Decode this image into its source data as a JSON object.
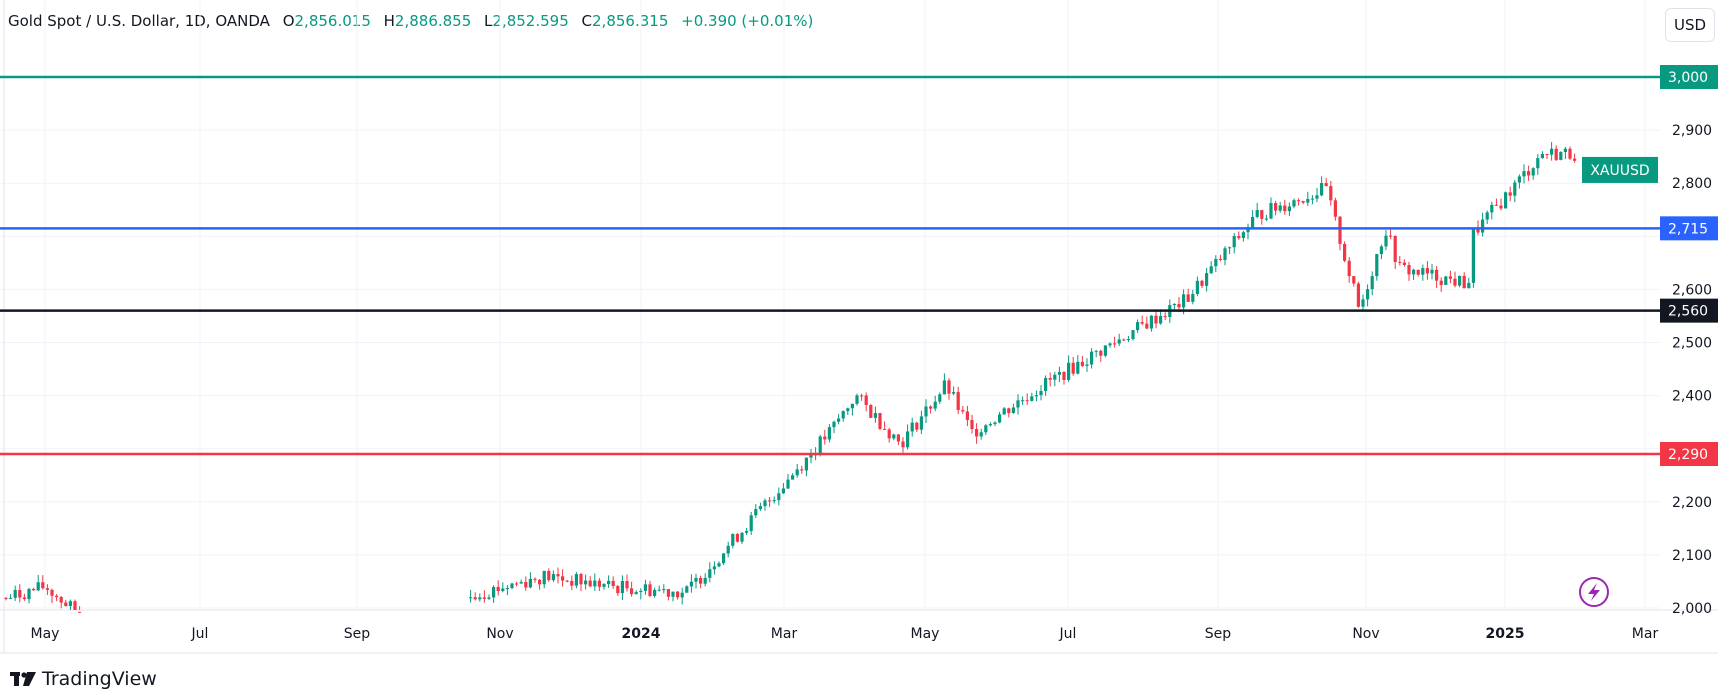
{
  "legend": {
    "symbol": "Gold Spot / U.S. Dollar, 1D, OANDA",
    "open_label": "O",
    "open": "2,856.015",
    "high_label": "H",
    "high": "2,886.855",
    "low_label": "L",
    "low": "2,852.595",
    "close_label": "C",
    "close": "2,856.315",
    "change": "+0.390 (+0.01%)"
  },
  "currency_button": "USD",
  "ticker_label": "XAUUSD",
  "branding": {
    "logo_text": "TradingView"
  },
  "colors": {
    "up": "#089981",
    "down": "#f23645",
    "resistance_3000": "#089981",
    "level_2715": "#2962ff",
    "level_2560": "#131722",
    "level_2290": "#f23645",
    "flash_icon": "#9c27b0"
  },
  "chart_data": {
    "type": "candlestick",
    "title": "Gold Spot / U.S. Dollar, 1D, OANDA",
    "xlabel": "",
    "ylabel": "USD",
    "ylim": [
      1985,
      3060
    ],
    "y_ticks": [
      2000,
      2100,
      2200,
      2300,
      2400,
      2500,
      2600,
      2700,
      2800,
      2900
    ],
    "y_tick_labels": [
      "2,000",
      "2,100",
      "2,200",
      "2,300",
      "2,400",
      "2,500",
      "2,600",
      "2,700",
      "2,800",
      "2,900"
    ],
    "x_tick_labels": [
      "May",
      "Jul",
      "Sep",
      "Nov",
      "2024",
      "Mar",
      "May",
      "Jul",
      "Sep",
      "Nov",
      "2025",
      "Mar"
    ],
    "horizontal_levels": [
      {
        "label": "3,000",
        "value": 3000,
        "color": "#089981"
      },
      {
        "label": "2,715",
        "value": 2715,
        "color": "#2962ff"
      },
      {
        "label": "2,560",
        "value": 2560,
        "color": "#131722"
      },
      {
        "label": "2,290",
        "value": 2290,
        "color": "#f23645"
      }
    ],
    "approx_close_path": [
      {
        "date": "2023-04",
        "close": 2000
      },
      {
        "date": "2023-05",
        "close": 2040
      },
      {
        "date": "2023-06",
        "close": 1930
      },
      {
        "date": "2023-10",
        "close": 1990
      },
      {
        "date": "2023-12",
        "close": 2060
      },
      {
        "date": "2024-01",
        "close": 2040
      },
      {
        "date": "2024-02",
        "close": 2030
      },
      {
        "date": "2024-03",
        "close": 2180
      },
      {
        "date": "2024-04",
        "close": 2330
      },
      {
        "date": "2024-04-12",
        "close": 2400
      },
      {
        "date": "2024-05",
        "close": 2310
      },
      {
        "date": "2024-05-20",
        "close": 2420
      },
      {
        "date": "2024-06",
        "close": 2330
      },
      {
        "date": "2024-07",
        "close": 2420
      },
      {
        "date": "2024-08",
        "close": 2500
      },
      {
        "date": "2024-09",
        "close": 2580
      },
      {
        "date": "2024-10",
        "close": 2740
      },
      {
        "date": "2024-10-30",
        "close": 2790
      },
      {
        "date": "2024-11-14",
        "close": 2560
      },
      {
        "date": "2024-11-25",
        "close": 2715
      },
      {
        "date": "2024-12",
        "close": 2640
      },
      {
        "date": "2024-12-30",
        "close": 2610
      },
      {
        "date": "2025-01",
        "close": 2700
      },
      {
        "date": "2025-02",
        "close": 2856
      }
    ],
    "last_price": 2856.315,
    "legend_position": "top-left"
  }
}
